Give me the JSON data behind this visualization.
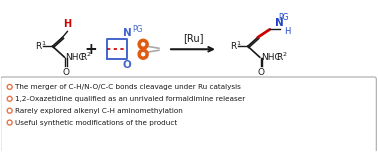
{
  "bg_color": "#ffffff",
  "bullet_color": "#e8734a",
  "bullet_texts": [
    "The merger of C-H/N-O/C-C bonds cleavage under Ru catalysis",
    "1,2-Oxazetidine qualified as an unrivaled formaldimine releaser",
    "Rarely explored alkenyl C-H aminomethylation",
    "Useful synthetic modifications of the product"
  ],
  "arrow_label": "[Ru]",
  "text_color": "#1a1a1a",
  "box_border_color": "#aaaaaa",
  "red_color": "#cc0000",
  "blue_color": "#2244cc",
  "orange_color": "#e05a10",
  "ring_color": "#4466cc",
  "bg_color2": "#ffffff"
}
